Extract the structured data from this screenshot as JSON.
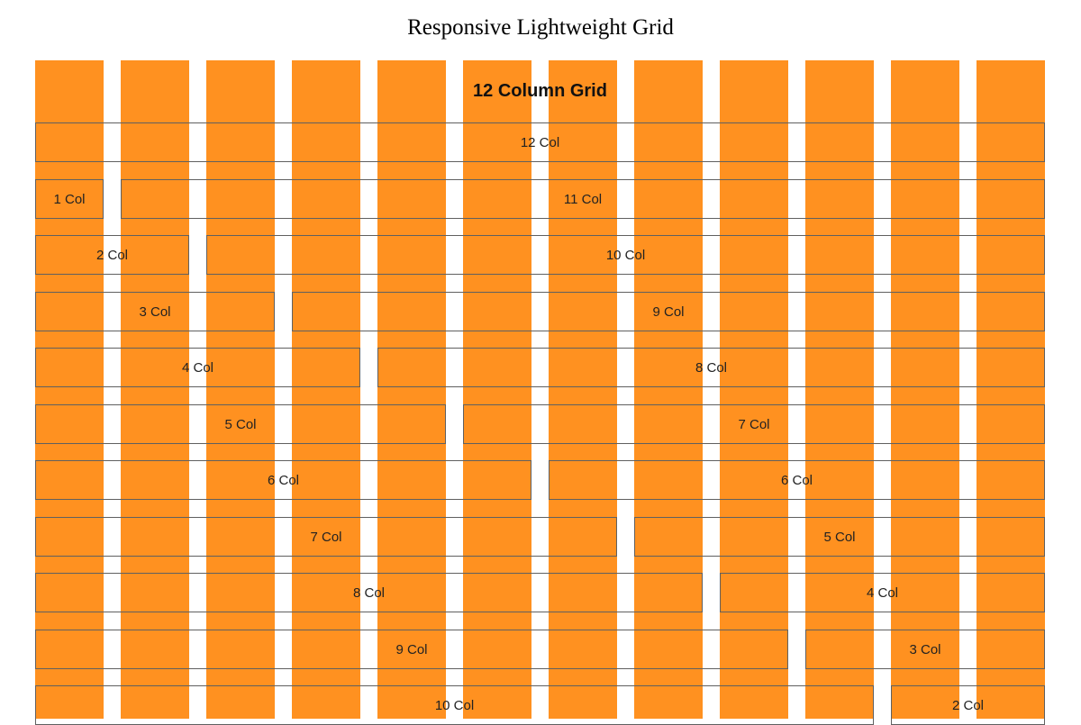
{
  "page": {
    "title": "Responsive Lightweight Grid"
  },
  "grid": {
    "heading": "12 Column Grid",
    "column_count": 12,
    "stripe_color": "#ff9120",
    "border_color": "#606060",
    "rows": [
      {
        "cells": [
          {
            "span": 12,
            "label": "12 Col"
          }
        ]
      },
      {
        "cells": [
          {
            "span": 1,
            "label": "1 Col"
          },
          {
            "span": 11,
            "label": "11 Col"
          }
        ]
      },
      {
        "cells": [
          {
            "span": 2,
            "label": "2 Col"
          },
          {
            "span": 10,
            "label": "10 Col"
          }
        ]
      },
      {
        "cells": [
          {
            "span": 3,
            "label": "3 Col"
          },
          {
            "span": 9,
            "label": "9 Col"
          }
        ]
      },
      {
        "cells": [
          {
            "span": 4,
            "label": "4 Col"
          },
          {
            "span": 8,
            "label": "8 Col"
          }
        ]
      },
      {
        "cells": [
          {
            "span": 5,
            "label": "5 Col"
          },
          {
            "span": 7,
            "label": "7 Col"
          }
        ]
      },
      {
        "cells": [
          {
            "span": 6,
            "label": "6 Col"
          },
          {
            "span": 6,
            "label": "6 Col"
          }
        ]
      },
      {
        "cells": [
          {
            "span": 7,
            "label": "7 Col"
          },
          {
            "span": 5,
            "label": "5 Col"
          }
        ]
      },
      {
        "cells": [
          {
            "span": 8,
            "label": "8 Col"
          },
          {
            "span": 4,
            "label": "4 Col"
          }
        ]
      },
      {
        "cells": [
          {
            "span": 9,
            "label": "9 Col"
          },
          {
            "span": 3,
            "label": "3 Col"
          }
        ]
      },
      {
        "cells": [
          {
            "span": 10,
            "label": "10 Col"
          },
          {
            "span": 2,
            "label": "2 Col"
          }
        ]
      }
    ]
  }
}
